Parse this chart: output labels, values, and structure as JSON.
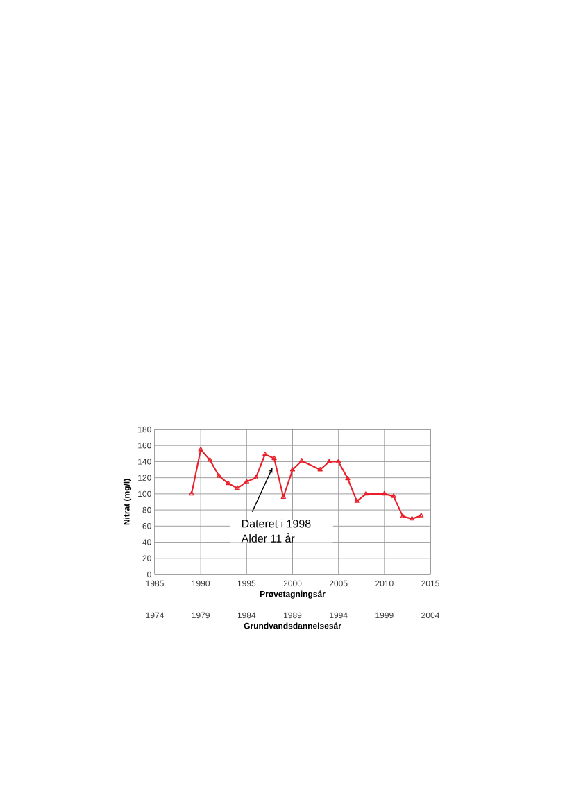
{
  "chart_data": {
    "type": "line",
    "xlabel": "Prøvetagningsår",
    "ylabel": "Nitrat (mg/l)",
    "x2label": "Grundvandsdannelsesår",
    "x": [
      1989,
      1990,
      1991,
      1992,
      1993,
      1994,
      1995,
      1996,
      1997,
      1998,
      1999,
      2000,
      2001,
      2003,
      2004,
      2005,
      2006,
      2007,
      2008,
      2010,
      2011,
      2012,
      2013,
      2014
    ],
    "series": [
      {
        "color": "#e8202a",
        "values": [
          100,
          155,
          142,
          122,
          113,
          107,
          115,
          120,
          149,
          144,
          96,
          130,
          141,
          130,
          140,
          140,
          119,
          91,
          100,
          100,
          97,
          72,
          69,
          73
        ]
      }
    ],
    "xlim": [
      1985,
      2015
    ],
    "xticks": [
      1985,
      1990,
      1995,
      2000,
      2005,
      2010,
      2015
    ],
    "ylim": [
      0,
      180
    ],
    "yticks": [
      0,
      20,
      40,
      60,
      80,
      100,
      120,
      140,
      160,
      180
    ],
    "x2lim": [
      1974,
      2004
    ],
    "x2ticks": [
      1974,
      1979,
      1984,
      1989,
      1994,
      1999,
      2004
    ],
    "annotations": [
      "Dateret i 1998",
      "Alder 11 år"
    ],
    "grid": true,
    "marker": "triangle",
    "line_style": "solid"
  }
}
